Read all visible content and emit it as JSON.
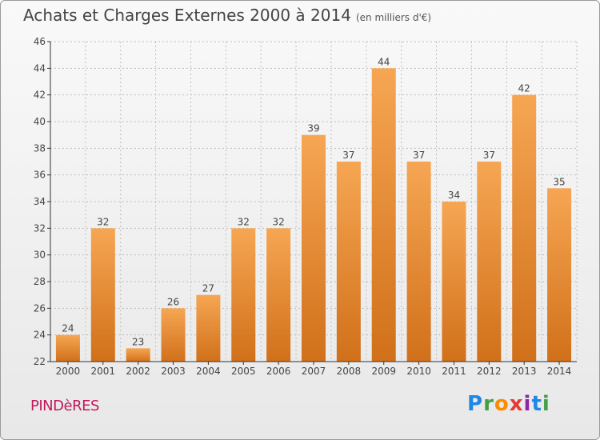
{
  "header": {
    "title": "Achats et Charges Externes 2000 à 2014",
    "unit": "(en milliers d'€)"
  },
  "footer": {
    "location": "PINDèRES",
    "logo": [
      "P",
      "r",
      "o",
      "x",
      "i",
      "t",
      "i"
    ]
  },
  "colors": {
    "bar_top": "#f6a653",
    "bar_bottom": "#d1701a",
    "grid": "#bdbdbd",
    "axis": "#333333"
  },
  "chart_data": {
    "type": "bar",
    "title": "Achats et Charges Externes 2000 à 2014",
    "subtitle": "(en milliers d'€)",
    "categories": [
      "2000",
      "2001",
      "2002",
      "2003",
      "2004",
      "2005",
      "2006",
      "2007",
      "2008",
      "2009",
      "2010",
      "2011",
      "2012",
      "2013",
      "2014"
    ],
    "values": [
      24,
      32,
      23,
      26,
      27,
      32,
      32,
      39,
      37,
      44,
      37,
      34,
      37,
      42,
      35
    ],
    "ylim": [
      22,
      46
    ],
    "yticks": [
      22,
      24,
      26,
      28,
      30,
      32,
      34,
      36,
      38,
      40,
      42,
      44,
      46
    ],
    "grid": true,
    "legend": "none"
  }
}
